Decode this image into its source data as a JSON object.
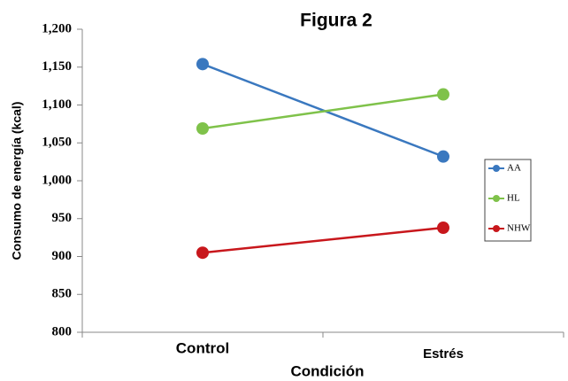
{
  "chart_data": {
    "type": "line",
    "title": "Figura 2",
    "x_label": "Condición",
    "y_label": "Consumo de energía (kcal)",
    "categories": [
      "Control",
      "Estrés"
    ],
    "series": [
      {
        "name": "AA",
        "color": "#3a78bf",
        "values": [
          1154,
          1032
        ]
      },
      {
        "name": "HL",
        "color": "#7fc24a",
        "values": [
          1069,
          1114
        ]
      },
      {
        "name": "NHW",
        "color": "#c8171c",
        "values": [
          905,
          938
        ]
      }
    ],
    "ylim": [
      800,
      1200
    ],
    "yticks": [
      800,
      850,
      900,
      950,
      {
        "value": 1000,
        "label": "1,000"
      },
      {
        "value": 1050,
        "label": "1,050"
      },
      {
        "value": 1100,
        "label": "1,100"
      },
      {
        "value": 1150,
        "label": "1,150"
      },
      {
        "value": 1200,
        "label": "1,200"
      }
    ],
    "legend": "right"
  }
}
